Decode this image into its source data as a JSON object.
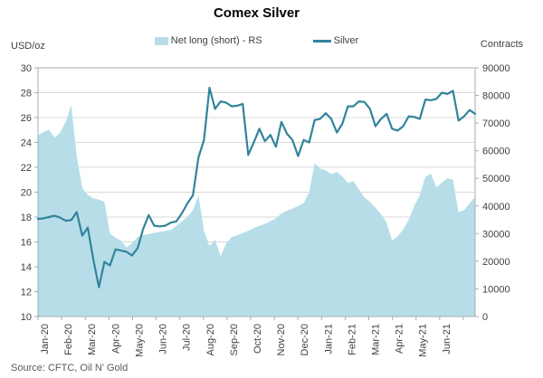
{
  "chart_data": {
    "type": "combo-area-line",
    "title": "Comex Silver",
    "source": "Source: CFTC, Oil N' Gold",
    "left_axis": {
      "caption": "USD/oz",
      "min": 10,
      "max": 30,
      "step": 2
    },
    "right_axis": {
      "caption": "Contracts",
      "min": 0,
      "max": 90000,
      "step": 10000
    },
    "x_axis": {
      "tick_labels": [
        "Jan-20",
        "Feb-20",
        "Mar-20",
        "Apr-20",
        "May-20",
        "Jun-20",
        "Jul-20",
        "Aug-20",
        "Sep-20",
        "Oct-20",
        "Nov-20",
        "Dec-20",
        "Jan-21",
        "Feb-21",
        "Mar-21",
        "Apr-21",
        "May-21",
        "Jun-21"
      ],
      "months_spanned": 18.5,
      "frequency": "weekly"
    },
    "grid": "horizontal",
    "legend_position": "top-center",
    "colors": {
      "area": "#b7dee8",
      "line": "#31849b",
      "gridline": "#d9d9d9",
      "frame": "#a3aeb9",
      "text": "#404040"
    },
    "series": [
      {
        "name": "Net long (short) - RS",
        "type": "area",
        "axis": "right",
        "color": "#b7dee8",
        "values": [
          65500,
          66800,
          67600,
          64800,
          66500,
          70500,
          76500,
          58000,
          46500,
          44000,
          42800,
          42300,
          41500,
          30000,
          28500,
          27500,
          25000,
          26500,
          28800,
          29500,
          29800,
          30300,
          30700,
          31000,
          31300,
          32800,
          34500,
          36000,
          38500,
          44000,
          31000,
          25500,
          27800,
          21800,
          26500,
          28800,
          29400,
          30200,
          31000,
          32000,
          32800,
          33500,
          34500,
          35500,
          37300,
          38300,
          39000,
          40000,
          41000,
          45000,
          55500,
          53500,
          53000,
          51500,
          52300,
          50700,
          48300,
          49000,
          46000,
          43000,
          41500,
          39400,
          37000,
          34000,
          27500,
          29000,
          31500,
          35000,
          40000,
          44000,
          50600,
          51700,
          46700,
          48500,
          50000,
          49500,
          37700,
          38500,
          41000,
          43300
        ]
      },
      {
        "name": "Silver",
        "type": "line",
        "axis": "left",
        "color": "#31849b",
        "values": [
          17.85,
          17.9,
          18.0,
          18.1,
          17.95,
          17.7,
          17.75,
          18.4,
          16.5,
          17.15,
          14.6,
          12.35,
          14.4,
          14.1,
          15.4,
          15.3,
          15.2,
          14.9,
          15.5,
          17.05,
          18.15,
          17.3,
          17.25,
          17.3,
          17.55,
          17.65,
          18.3,
          19.1,
          19.75,
          22.8,
          24.2,
          28.4,
          26.7,
          27.3,
          27.2,
          26.9,
          26.95,
          27.1,
          23.0,
          24.0,
          25.1,
          24.1,
          24.6,
          23.65,
          25.65,
          24.7,
          24.2,
          22.9,
          24.2,
          24.0,
          25.8,
          25.9,
          26.35,
          25.9,
          24.8,
          25.5,
          26.9,
          26.9,
          27.3,
          27.25,
          26.7,
          25.3,
          25.9,
          26.3,
          25.1,
          24.95,
          25.3,
          26.1,
          26.05,
          25.9,
          27.45,
          27.4,
          27.5,
          28.0,
          27.9,
          28.15,
          25.75,
          26.1,
          26.6,
          26.3
        ]
      }
    ]
  }
}
